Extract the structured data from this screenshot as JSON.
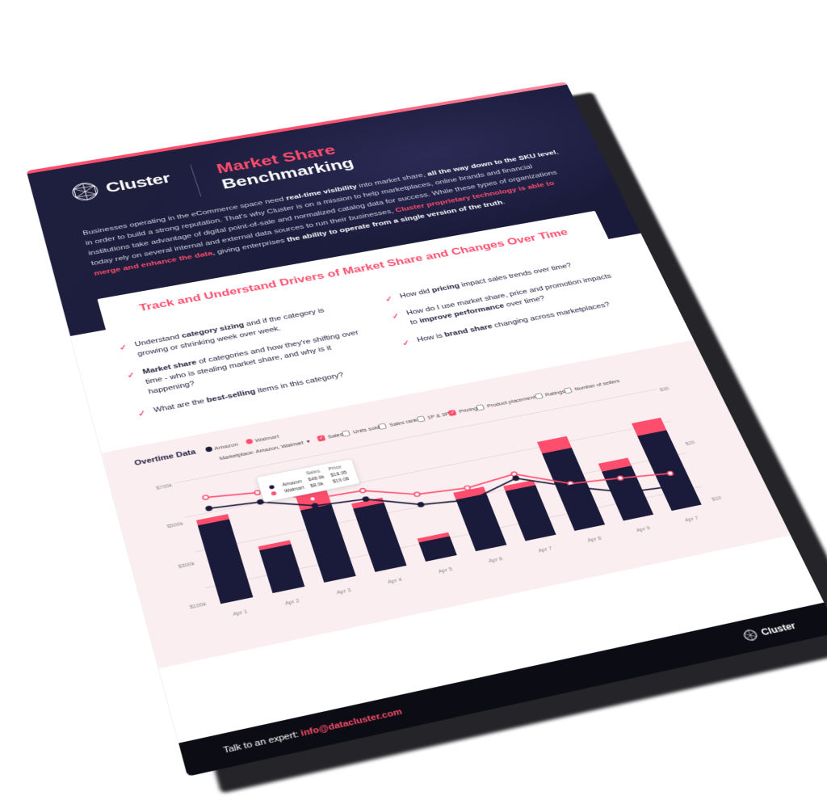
{
  "brand": "Cluster",
  "title_line1": "Market Share",
  "title_line2": "Benchmarking",
  "intro": "Businesses operating in the eCommerce space need <bold>real-time visibility</bold> into market share, <bold>all the way down to the SKU level</bold>, in order to build a strong reputation. That's why Cluster is on a mission to help marketplaces, online brands and financial institutions take advantage of digital point-of-sale and normalized catalog data for success. While these types of organizations today rely on several internal and external data sources to run their businesses, <acc>Cluster proprietary technology is able to merge and enhance the data</acc>, giving enterprises <bold>the ability to operate from a single version of the truth</bold>.",
  "section_title": "Track and Understand Drivers of Market Share and Changes Over Time",
  "bullets_left": [
    "Understand <strong>category sizing</strong> and if the category is growing or shrinking week over week.",
    "<strong>Market share</strong> of categories and how they're shifting over time - who is stealing market share, and why is it happening?",
    "What are the <strong>best-selling</strong> items in this category?"
  ],
  "bullets_right": [
    "How did <strong>pricing</strong> impact sales trends over time?",
    "How do I use market share, price and promotion impacts to <strong>improve performance</strong> over time?",
    "How is <strong>brand share</strong> changing across marketplaces?"
  ],
  "chart": {
    "title": "Overtime Data",
    "legend": [
      {
        "label": "Amazon",
        "color": "#1a1a3a"
      },
      {
        "label": "Walmart",
        "color": "#ff4d6d"
      }
    ],
    "marketplace_label": "Marketplace: Amazon, Walmart",
    "filters": [
      {
        "label": "Sales",
        "on": true
      },
      {
        "label": "Units sold",
        "on": false
      },
      {
        "label": "Sales rank",
        "on": false
      },
      {
        "label": "1P & 3P",
        "on": false
      },
      {
        "label": "Pricing",
        "on": true
      },
      {
        "label": "Product placement",
        "on": false
      },
      {
        "label": "Ratings",
        "on": false
      },
      {
        "label": "Number of sellers",
        "on": false
      }
    ],
    "y_left": [
      "$700k",
      "$500k",
      "$300k",
      "$100k"
    ],
    "y_left_vals": [
      700,
      500,
      300,
      100
    ],
    "y_right": [
      "$30",
      "$20",
      "$10"
    ],
    "y_right_vals": [
      30,
      20,
      10
    ],
    "x_labels": [
      "Apr 1",
      "Apr 2",
      "Apr 3",
      "Apr 4",
      "Apr 5",
      "Apr 6",
      "Apr 7",
      "Apr 8",
      "Apr 9",
      "Apr 7"
    ],
    "bars": [
      {
        "navy": 440,
        "pink": 30
      },
      {
        "navy": 240,
        "pink": 20
      },
      {
        "navy": 410,
        "pink": 80
      },
      {
        "navy": 360,
        "pink": 30
      },
      {
        "navy": 110,
        "pink": 20
      },
      {
        "navy": 300,
        "pink": 40
      },
      {
        "navy": 290,
        "pink": 30
      },
      {
        "navy": 460,
        "pink": 70
      },
      {
        "navy": 290,
        "pink": 50
      },
      {
        "navy": 450,
        "pink": 80
      }
    ],
    "bar_max": 700,
    "line_navy": [
      520,
      500,
      420,
      400,
      310,
      280,
      350,
      240,
      150,
      130
    ],
    "line_pink": [
      585,
      555,
      460,
      450,
      370,
      350,
      375,
      260,
      235,
      205
    ],
    "line_max": 700,
    "colors": {
      "navy": "#1a1a3a",
      "pink": "#ff4d6d",
      "bg": "#fbeef1",
      "grid": "#e9d4d9"
    },
    "tooltip": {
      "header": [
        "",
        "",
        "Sales",
        "Price"
      ],
      "rows": [
        {
          "dot": "#1a1a3a",
          "name": "Amazon",
          "sales": "$48.9k",
          "price": "$18.95"
        },
        {
          "dot": "#ff4d6d",
          "name": "Walmart",
          "sales": "$8.9k",
          "price": "$19.08"
        }
      ]
    }
  },
  "footer": {
    "text": "Talk to an expert:",
    "email": "info@datacluster.com"
  }
}
